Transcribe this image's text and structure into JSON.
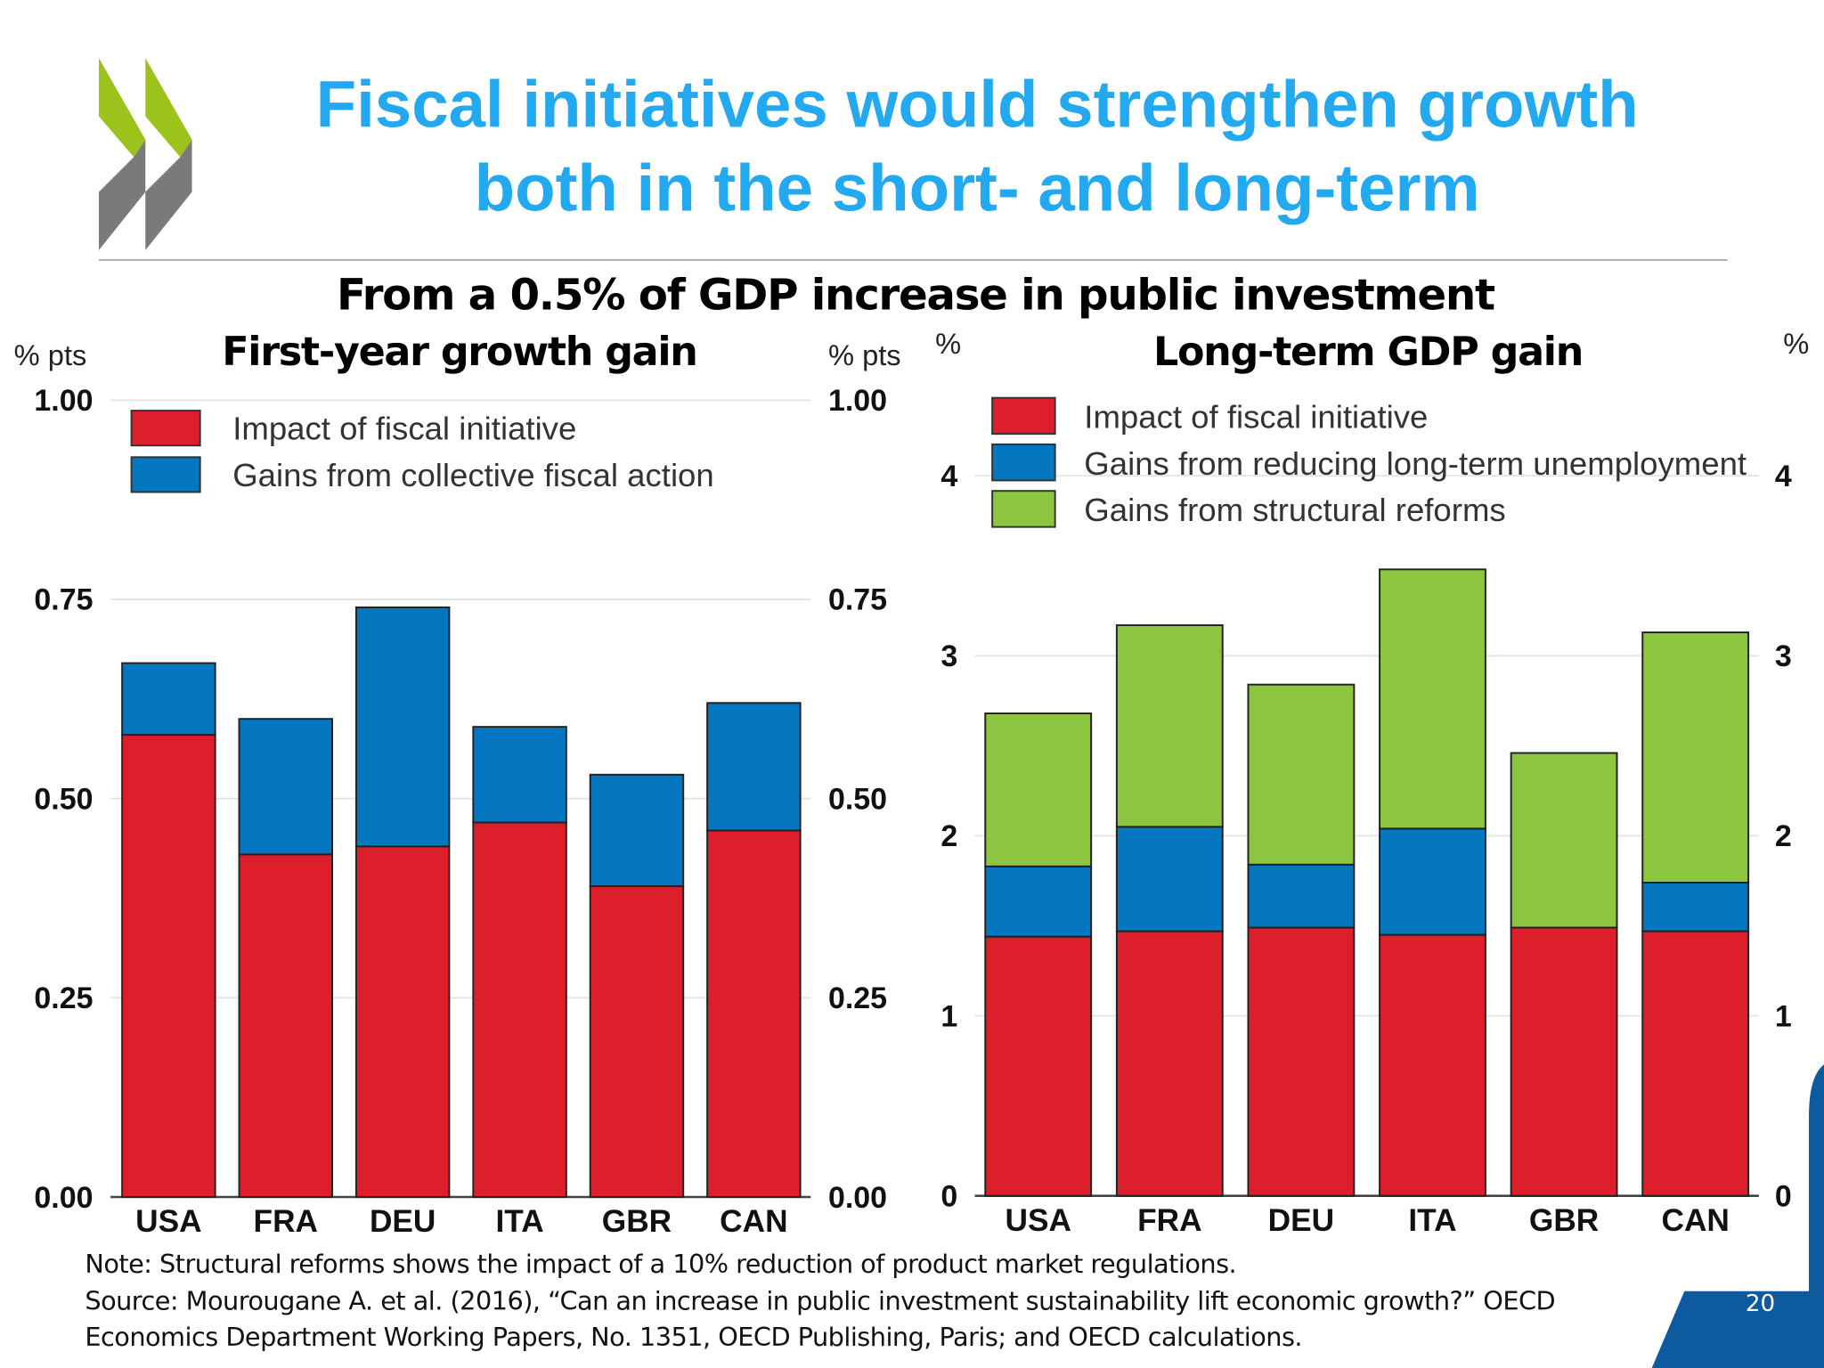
{
  "slide": {
    "title_line1": "Fiscal initiatives would strengthen growth",
    "title_line2": "both in the short- and long-term",
    "subtitle": "From a 0.5% of GDP increase in public investment",
    "note": "Note: Structural reforms shows the impact of a 10% reduction of product market regulations.",
    "source_line1": "Source: Mourougane A. et al. (2016), “Can an increase in public investment sustainability lift economic growth?” OECD",
    "source_line2": "Economics Department Working Papers, No. 1351, OECD Publishing, Paris; and OECD calculations.",
    "page_number": "20",
    "colors": {
      "title": "#22a9ef",
      "logo_green": "#9cc31b",
      "logo_grey": "#7a7a7a",
      "corner_blue": "#0d5a9e"
    }
  },
  "chart_data": [
    {
      "type": "bar",
      "stacked": true,
      "title": "First-year growth gain",
      "ylabel_left": "% pts",
      "ylabel_right": "% pts",
      "categories": [
        "USA",
        "FRA",
        "DEU",
        "ITA",
        "GBR",
        "CAN"
      ],
      "ylim": [
        0,
        1.0
      ],
      "yticks": [
        "0.00",
        "0.25",
        "0.50",
        "0.75",
        "1.00"
      ],
      "grid": true,
      "legend_position": "top-left",
      "series": [
        {
          "name": "Impact of fiscal initiative",
          "color": "#dc1f2a",
          "values": [
            0.58,
            0.43,
            0.44,
            0.47,
            0.39,
            0.46
          ]
        },
        {
          "name": "Gains from collective fiscal action",
          "color": "#0577c1",
          "values": [
            0.09,
            0.17,
            0.3,
            0.12,
            0.14,
            0.16
          ]
        }
      ]
    },
    {
      "type": "bar",
      "stacked": true,
      "title": "Long-term GDP gain",
      "ylabel_left": "%",
      "ylabel_right": "%",
      "categories": [
        "USA",
        "FRA",
        "DEU",
        "ITA",
        "GBR",
        "CAN"
      ],
      "ylim": [
        0,
        4.4
      ],
      "yticks": [
        "0",
        "1",
        "2",
        "3",
        "4"
      ],
      "grid": true,
      "legend_position": "top-left",
      "series": [
        {
          "name": "Impact of fiscal initiative",
          "color": "#dc1f2a",
          "values": [
            1.44,
            1.47,
            1.49,
            1.45,
            1.49,
            1.47
          ]
        },
        {
          "name": "Gains from reducing long-term unemployment",
          "color": "#0577c1",
          "values": [
            0.39,
            0.58,
            0.35,
            0.59,
            0.0,
            0.27
          ]
        },
        {
          "name": "Gains from structural reforms",
          "color": "#8cc641",
          "values": [
            0.85,
            1.12,
            1.0,
            1.44,
            0.97,
            1.39
          ]
        }
      ]
    }
  ]
}
